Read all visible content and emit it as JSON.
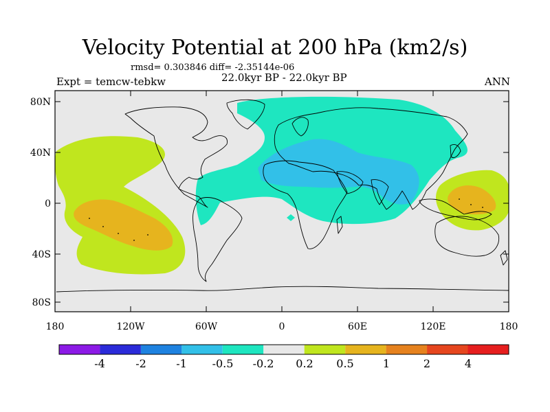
{
  "title": "Velocity Potential at 200 hPa (km2/s)",
  "stats": "rmsd= 0.303846 diff= -2.35144e-06",
  "experiment": "Expt = temcw-tebkw",
  "period": "22.0kyr BP - 22.0kyr BP",
  "season": "ANN",
  "y_axis": [
    "80N",
    "40N",
    "0",
    "40S",
    "80S"
  ],
  "x_axis": [
    "180",
    "120W",
    "60W",
    "0",
    "60E",
    "120E",
    "180"
  ],
  "colorbar": {
    "colors": [
      "#8c1ae6",
      "#2b2bd9",
      "#1e82e0",
      "#32c0e8",
      "#1ee6c0",
      "#e8e8e8",
      "#c0e61e",
      "#e6b41e",
      "#e6821e",
      "#e6461e",
      "#e61e1e"
    ],
    "labels": [
      "-4",
      "-2",
      "-1",
      "-0.5",
      "-0.2",
      "0.2",
      "0.5",
      "1",
      "2",
      "4"
    ]
  },
  "field_colors": {
    "background": "#e8e8e8",
    "neg_weak": "#1ee6c0",
    "neg_mid": "#32c0e8",
    "pos_weak": "#c0e61e",
    "pos_mid": "#e6b41e"
  }
}
